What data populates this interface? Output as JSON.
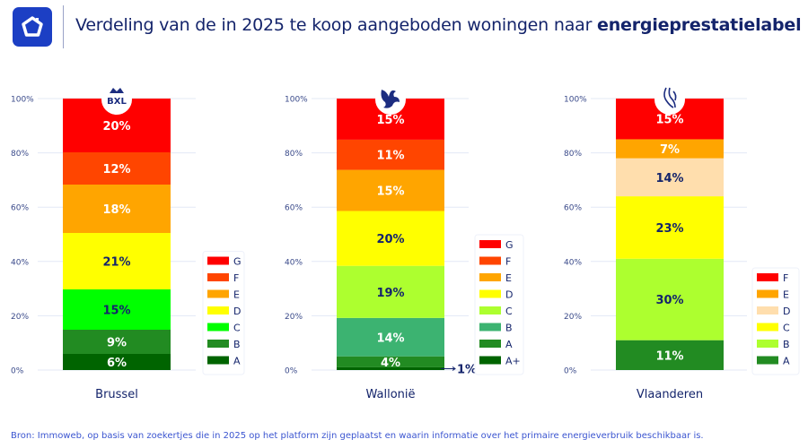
{
  "header": {
    "title_prefix": "Verdeling van de in 2025 te koop aangeboden woningen naar ",
    "title_bold": "energieprestatielabel",
    "logo_icon": "house-icon",
    "brand_color": "#1c3fc4"
  },
  "chart_data": {
    "type": "bar",
    "stacked": true,
    "yaxis": {
      "ticks": [
        "0%",
        "20%",
        "40%",
        "60%",
        "80%",
        "100%"
      ],
      "ylim": [
        0,
        100
      ]
    },
    "grid": true,
    "legend_placement": "right of each bar",
    "label_color_dark": "#14246b",
    "panels": [
      {
        "region": "Brussel",
        "emblem": "BXL",
        "segments": [
          {
            "label": "A",
            "value": 6,
            "display": "6%",
            "color": "#006400",
            "text": "light"
          },
          {
            "label": "B",
            "value": 9,
            "display": "9%",
            "color": "#228b22",
            "text": "light"
          },
          {
            "label": "C",
            "value": 15,
            "display": "15%",
            "color": "#00ff00",
            "text": "dark"
          },
          {
            "label": "D",
            "value": 21,
            "display": "21%",
            "color": "#ffff00",
            "text": "dark"
          },
          {
            "label": "E",
            "value": 18,
            "display": "18%",
            "color": "#ffa500",
            "text": "light"
          },
          {
            "label": "F",
            "value": 12,
            "display": "12%",
            "color": "#ff4500",
            "text": "light"
          },
          {
            "label": "G",
            "value": 20,
            "display": "20%",
            "color": "#ff0000",
            "text": "light"
          }
        ]
      },
      {
        "region": "Wallonië",
        "emblem": "rooster-emblem",
        "segments": [
          {
            "label": "A+",
            "value": 1,
            "display": "1%",
            "color": "#006400",
            "text": "dark",
            "outside": true
          },
          {
            "label": "A",
            "value": 4,
            "display": "4%",
            "color": "#228b22",
            "text": "light"
          },
          {
            "label": "B",
            "value": 14,
            "display": "14%",
            "color": "#3cb371",
            "text": "light"
          },
          {
            "label": "C",
            "value": 19,
            "display": "19%",
            "color": "#adff2f",
            "text": "dark"
          },
          {
            "label": "D",
            "value": 20,
            "display": "20%",
            "color": "#ffff00",
            "text": "dark"
          },
          {
            "label": "E",
            "value": 15,
            "display": "15%",
            "color": "#ffa500",
            "text": "light"
          },
          {
            "label": "F",
            "value": 11,
            "display": "11%",
            "color": "#ff4500",
            "text": "light"
          },
          {
            "label": "G",
            "value": 15,
            "display": "15%",
            "color": "#ff0000",
            "text": "light"
          }
        ]
      },
      {
        "region": "Vlaanderen",
        "emblem": "lion-emblem",
        "segments": [
          {
            "label": "A",
            "value": 11,
            "display": "11%",
            "color": "#228b22",
            "text": "light"
          },
          {
            "label": "B",
            "value": 30,
            "display": "30%",
            "color": "#adff2f",
            "text": "dark"
          },
          {
            "label": "C",
            "value": 23,
            "display": "23%",
            "color": "#ffff00",
            "text": "dark"
          },
          {
            "label": "D",
            "value": 14,
            "display": "14%",
            "color": "#ffdead",
            "text": "dark"
          },
          {
            "label": "E",
            "value": 7,
            "display": "7%",
            "color": "#ffa500",
            "text": "light"
          },
          {
            "label": "F",
            "value": 15,
            "display": "15%",
            "color": "#ff0000",
            "text": "light"
          }
        ]
      }
    ]
  },
  "footer": {
    "source": "Bron: Immoweb, op basis van zoekertjes die in 2025 op het platform zijn geplaatst en waarin informatie over het primaire energieverbruik beschikbaar is."
  }
}
